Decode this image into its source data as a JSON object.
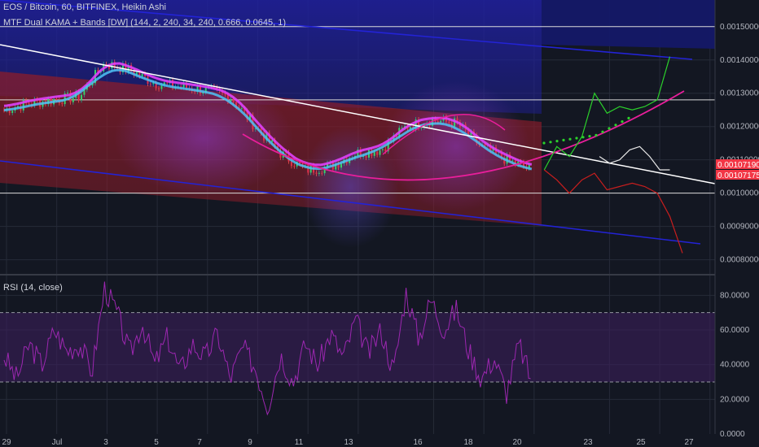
{
  "header": {
    "symbol_line": "EOS / Bitcoin, 60, BITFINEX, Heikin Ashi",
    "indicator_line": "MTF Dual KAMA + Bands [DW] (144, 2, 240, 34, 240, 0.666, 0.0645, 1)",
    "rsi_line": "RSI (14, close)"
  },
  "colors": {
    "background": "#131722",
    "grid": "#262b38",
    "upper_band": "#1a1a7a",
    "lower_band": "#7a1a26",
    "bull_candle": "#26a69a",
    "bear_candle": "#ef5350",
    "kama_fast": "#e040fb",
    "kama_slow": "#4fc3f7",
    "arc": "#e91e9b",
    "trend_line": "#ffffff",
    "channel": "#2323d6",
    "forecast_up": "#2bd12b",
    "forecast_down": "#c81e1e",
    "rsi": "#9c27b0",
    "price_tag": "#f23645"
  },
  "chart_data": [
    {
      "type": "line",
      "title": "EOS / Bitcoin, 60, BITFINEX, Heikin Ashi",
      "x_ticks": [
        "29",
        "Jul",
        "3",
        "5",
        "7",
        "9",
        "11",
        "13",
        "16",
        "18",
        "20",
        "23",
        "25",
        "27"
      ],
      "y_ticks": [
        "0.00150000",
        "0.00140000",
        "0.00130000",
        "0.00120000",
        "0.00110000",
        "0.00100000",
        "0.00090000",
        "0.00080000"
      ],
      "ylim": [
        0.00076,
        0.00158
      ],
      "price_labels": [
        "0.00107190",
        "0.00107175"
      ],
      "horizontal_levels": [
        0.0015,
        0.00128,
        0.001
      ],
      "series": [
        {
          "x": [
            0,
            1,
            2,
            3,
            4,
            5,
            6,
            7,
            8,
            9,
            10,
            11,
            12,
            13,
            14,
            15,
            16,
            17,
            18,
            19,
            20,
            21
          ],
          "values": [
            0.00125,
            0.00127,
            0.00128,
            0.00129,
            0.00139,
            0.00137,
            0.00133,
            0.00132,
            0.00131,
            0.00129,
            0.0012,
            0.00112,
            0.00107,
            0.00108,
            0.00112,
            0.00113,
            0.0012,
            0.00122,
            0.00121,
            0.00114,
            0.0011,
            0.00107
          ]
        },
        {
          "x": [
            21,
            21.5,
            22,
            22.5,
            23,
            23.5,
            24,
            24.5,
            25,
            25.5,
            26
          ],
          "values": [
            0.00107,
            0.00114,
            0.00111,
            0.00117,
            0.0013,
            0.00124,
            0.00126,
            0.00125,
            0.00126,
            0.00128,
            0.00141
          ]
        },
        {
          "x": [
            21,
            21.5,
            22,
            22.5,
            23,
            23.5,
            24,
            24.5,
            25,
            25.5,
            26,
            26.5
          ],
          "values": [
            0.00107,
            0.00104,
            0.001,
            0.00104,
            0.00106,
            0.00101,
            0.00102,
            0.00103,
            0.00102,
            0.001,
            0.00093,
            0.00082
          ]
        },
        {
          "x": [
            23.2,
            23.6,
            24,
            24.4,
            24.8,
            25.2,
            25.6,
            26
          ],
          "values": [
            0.00111,
            0.00109,
            0.0011,
            0.00113,
            0.00114,
            0.00111,
            0.00107,
            0.00107
          ]
        }
      ]
    },
    {
      "type": "line",
      "title": "RSI (14, close)",
      "y_ticks": [
        "80.0000",
        "60.0000",
        "40.0000",
        "20.0000",
        "0.0000"
      ],
      "ylim": [
        0,
        90
      ],
      "bands": [
        30,
        70
      ],
      "series": [
        {
          "x": [
            0,
            0.5,
            1,
            1.5,
            2,
            2.5,
            3,
            3.5,
            4,
            4.5,
            5,
            5.5,
            6,
            6.5,
            7,
            7.5,
            8,
            8.5,
            9,
            9.5,
            10,
            10.5,
            11,
            11.5,
            12,
            12.5,
            13,
            13.5,
            14,
            14.5,
            15,
            15.5,
            16,
            16.5,
            17,
            17.5,
            18,
            18.5,
            19,
            19.5,
            20,
            20.5,
            21
          ],
          "values": [
            45,
            32,
            52,
            40,
            60,
            48,
            52,
            36,
            84,
            70,
            46,
            64,
            40,
            56,
            36,
            52,
            44,
            58,
            32,
            50,
            38,
            16,
            46,
            30,
            52,
            40,
            58,
            44,
            66,
            46,
            60,
            36,
            82,
            55,
            78,
            60,
            72,
            48,
            32,
            44,
            24,
            52,
            30
          ]
        }
      ]
    }
  ]
}
